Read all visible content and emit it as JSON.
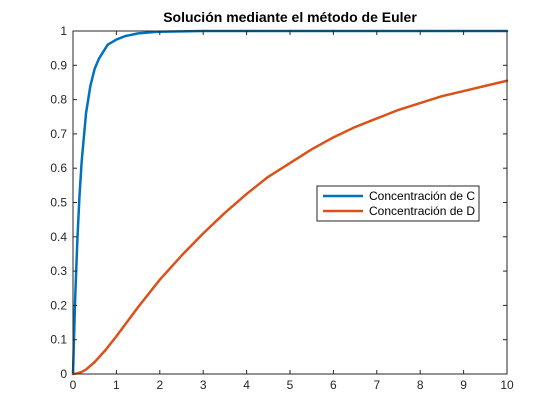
{
  "chart_data": {
    "type": "line",
    "title": "Solución mediante el método de Euler",
    "xlabel": "",
    "ylabel": "",
    "xlim": [
      0,
      10
    ],
    "ylim": [
      0,
      1
    ],
    "xticks": [
      0,
      1,
      2,
      3,
      4,
      5,
      6,
      7,
      8,
      9,
      10
    ],
    "yticks": [
      0,
      0.1,
      0.2,
      0.3,
      0.4,
      0.5,
      0.6,
      0.7,
      0.8,
      0.9,
      1
    ],
    "grid": false,
    "legend_position": "center-right",
    "series": [
      {
        "name": "Concentración de C",
        "color": "#0072BD",
        "x": [
          0,
          0.05,
          0.1,
          0.15,
          0.2,
          0.3,
          0.4,
          0.5,
          0.6,
          0.8,
          1.0,
          1.2,
          1.5,
          2.0,
          2.5,
          3,
          4,
          5,
          6,
          7,
          8,
          9,
          10
        ],
        "y": [
          0,
          0.22,
          0.39,
          0.52,
          0.62,
          0.76,
          0.84,
          0.89,
          0.92,
          0.96,
          0.975,
          0.985,
          0.993,
          0.998,
          0.999,
          1,
          1,
          1,
          1,
          1,
          1,
          1,
          1
        ]
      },
      {
        "name": "Concentración de D",
        "color": "#D95319",
        "x": [
          0,
          0.1,
          0.2,
          0.3,
          0.5,
          0.75,
          1.0,
          1.5,
          2.0,
          2.5,
          3,
          3.5,
          4,
          4.5,
          5,
          5.5,
          6,
          6.5,
          7,
          7.5,
          8,
          8.5,
          9,
          9.5,
          10
        ],
        "y": [
          0,
          0.002,
          0.006,
          0.013,
          0.035,
          0.07,
          0.11,
          0.195,
          0.275,
          0.345,
          0.41,
          0.47,
          0.525,
          0.575,
          0.615,
          0.655,
          0.69,
          0.72,
          0.745,
          0.77,
          0.79,
          0.81,
          0.825,
          0.84,
          0.855
        ]
      }
    ]
  }
}
